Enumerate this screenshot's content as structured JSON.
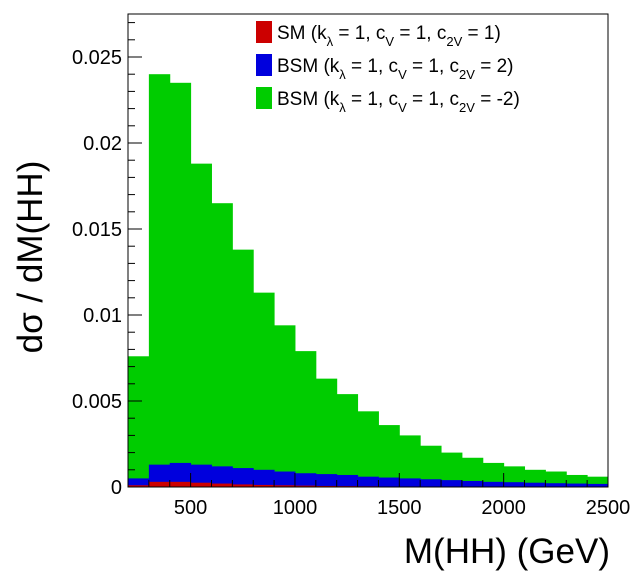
{
  "chart_data": {
    "type": "histogram",
    "title": "",
    "xlabel": "M(HH) (GeV)",
    "ylabel": "dσ / dM(HH)",
    "xlim": [
      200,
      2500
    ],
    "ylim": [
      0,
      0.0275
    ],
    "x_ticks": [
      500,
      1000,
      1500,
      2000,
      2500
    ],
    "y_ticks": [
      0,
      0.005,
      0.01,
      0.015,
      0.02,
      0.025
    ],
    "y_tick_labels": [
      "0",
      "0.005",
      "0.01",
      "0.015",
      "0.02",
      "0.025"
    ],
    "bin_edges": [
      200,
      300,
      400,
      500,
      600,
      700,
      800,
      900,
      1000,
      1100,
      1200,
      1300,
      1400,
      1500,
      1600,
      1700,
      1800,
      1900,
      2000,
      2100,
      2200,
      2300,
      2400,
      2500
    ],
    "legend_position": "top-right",
    "series": [
      {
        "name": "BSM",
        "label": {
          "main": "BSM (k",
          "kl_sub": "λ",
          "cv_text": " = 1, c",
          "cv_sub": "V",
          "c2v_text": " = 1, c",
          "c2v_sub": "2V",
          "tail": " = -2)"
        },
        "color": "#00cc00",
        "values": [
          0.0076,
          0.024,
          0.0235,
          0.0188,
          0.0165,
          0.0138,
          0.0113,
          0.0094,
          0.0079,
          0.0063,
          0.0054,
          0.0044,
          0.0036,
          0.003,
          0.0024,
          0.002,
          0.0017,
          0.0014,
          0.0012,
          0.001,
          0.0009,
          0.0007,
          0.0006
        ]
      },
      {
        "name": "BSM",
        "label": {
          "main": "BSM (k",
          "kl_sub": "λ",
          "cv_text": " = 1, c",
          "cv_sub": "V",
          "c2v_text": " = 1, c",
          "c2v_sub": "2V",
          "tail": " = 2)"
        },
        "color": "#0000dd",
        "values": [
          0.0005,
          0.0013,
          0.0014,
          0.0013,
          0.0012,
          0.0011,
          0.001,
          0.0009,
          0.0008,
          0.00075,
          0.0007,
          0.0006,
          0.00055,
          0.0005,
          0.00045,
          0.0004,
          0.00035,
          0.0003,
          0.00028,
          0.00025,
          0.00022,
          0.0002,
          0.00018
        ]
      },
      {
        "name": "SM",
        "label": {
          "main": "SM (k",
          "kl_sub": "λ",
          "cv_text": " = 1, c",
          "cv_sub": "V",
          "c2v_text": " = 1, c",
          "c2v_sub": "2V",
          "tail": " = 1)"
        },
        "color": "#cc0000",
        "values": [
          0.0001,
          0.0003,
          0.0003,
          0.00025,
          0.0002,
          0.00015,
          0.00012,
          0.0001,
          8e-05,
          6e-05,
          5e-05,
          4e-05,
          3e-05,
          3e-05,
          2e-05,
          2e-05,
          2e-05,
          1e-05,
          1e-05,
          1e-05,
          1e-05,
          1e-05,
          1e-05
        ]
      }
    ]
  }
}
